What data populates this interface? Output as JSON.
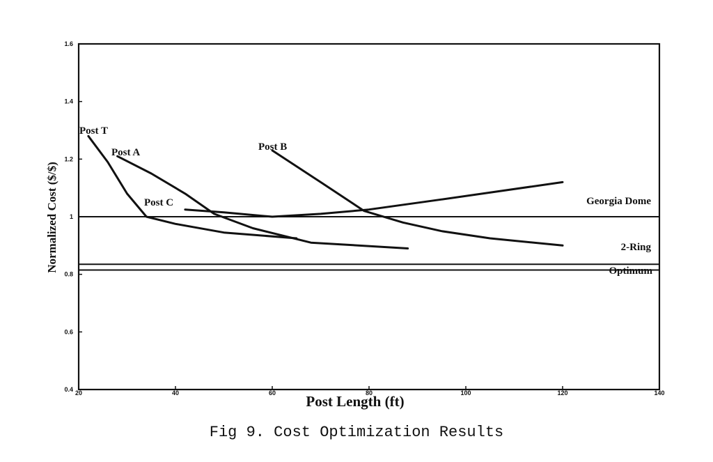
{
  "chart_data": {
    "type": "line",
    "xlabel": "Post Length (ft)",
    "ylabel": "Normalized Cost ($/$)",
    "xlim": [
      20,
      140
    ],
    "ylim": [
      0.4,
      1.6
    ],
    "x_ticks": [
      "20",
      "40",
      "60",
      "80",
      "100",
      "120",
      "140"
    ],
    "y_ticks": [
      "0.4",
      "0.6",
      "0.8",
      "1",
      "1.2",
      "1.4",
      "1.6"
    ],
    "grid": false,
    "series": [
      {
        "name": "Post T",
        "x": [
          22,
          26,
          30,
          34,
          40,
          50,
          65
        ],
        "y": [
          1.28,
          1.19,
          1.08,
          1.0,
          0.975,
          0.945,
          0.925
        ]
      },
      {
        "name": "Post A",
        "x": [
          28,
          35,
          42,
          48,
          56,
          68,
          88
        ],
        "y": [
          1.21,
          1.15,
          1.08,
          1.01,
          0.96,
          0.91,
          0.89
        ]
      },
      {
        "name": "Post C",
        "x": [
          42,
          50,
          60,
          70,
          80,
          95,
          120
        ],
        "y": [
          1.025,
          1.015,
          1.0,
          1.01,
          1.025,
          1.06,
          1.12
        ]
      },
      {
        "name": "Post B",
        "x": [
          60,
          70,
          79,
          87,
          95,
          105,
          120
        ],
        "y": [
          1.23,
          1.12,
          1.02,
          0.98,
          0.95,
          0.925,
          0.9
        ]
      }
    ],
    "reference_lines": [
      {
        "name": "Georgia Dome",
        "y": 1.0
      },
      {
        "name": "2-Ring",
        "y": 0.835
      },
      {
        "name": "Optimum",
        "y": 0.815
      }
    ]
  },
  "caption": "Fig 9.  Cost Optimization Results"
}
